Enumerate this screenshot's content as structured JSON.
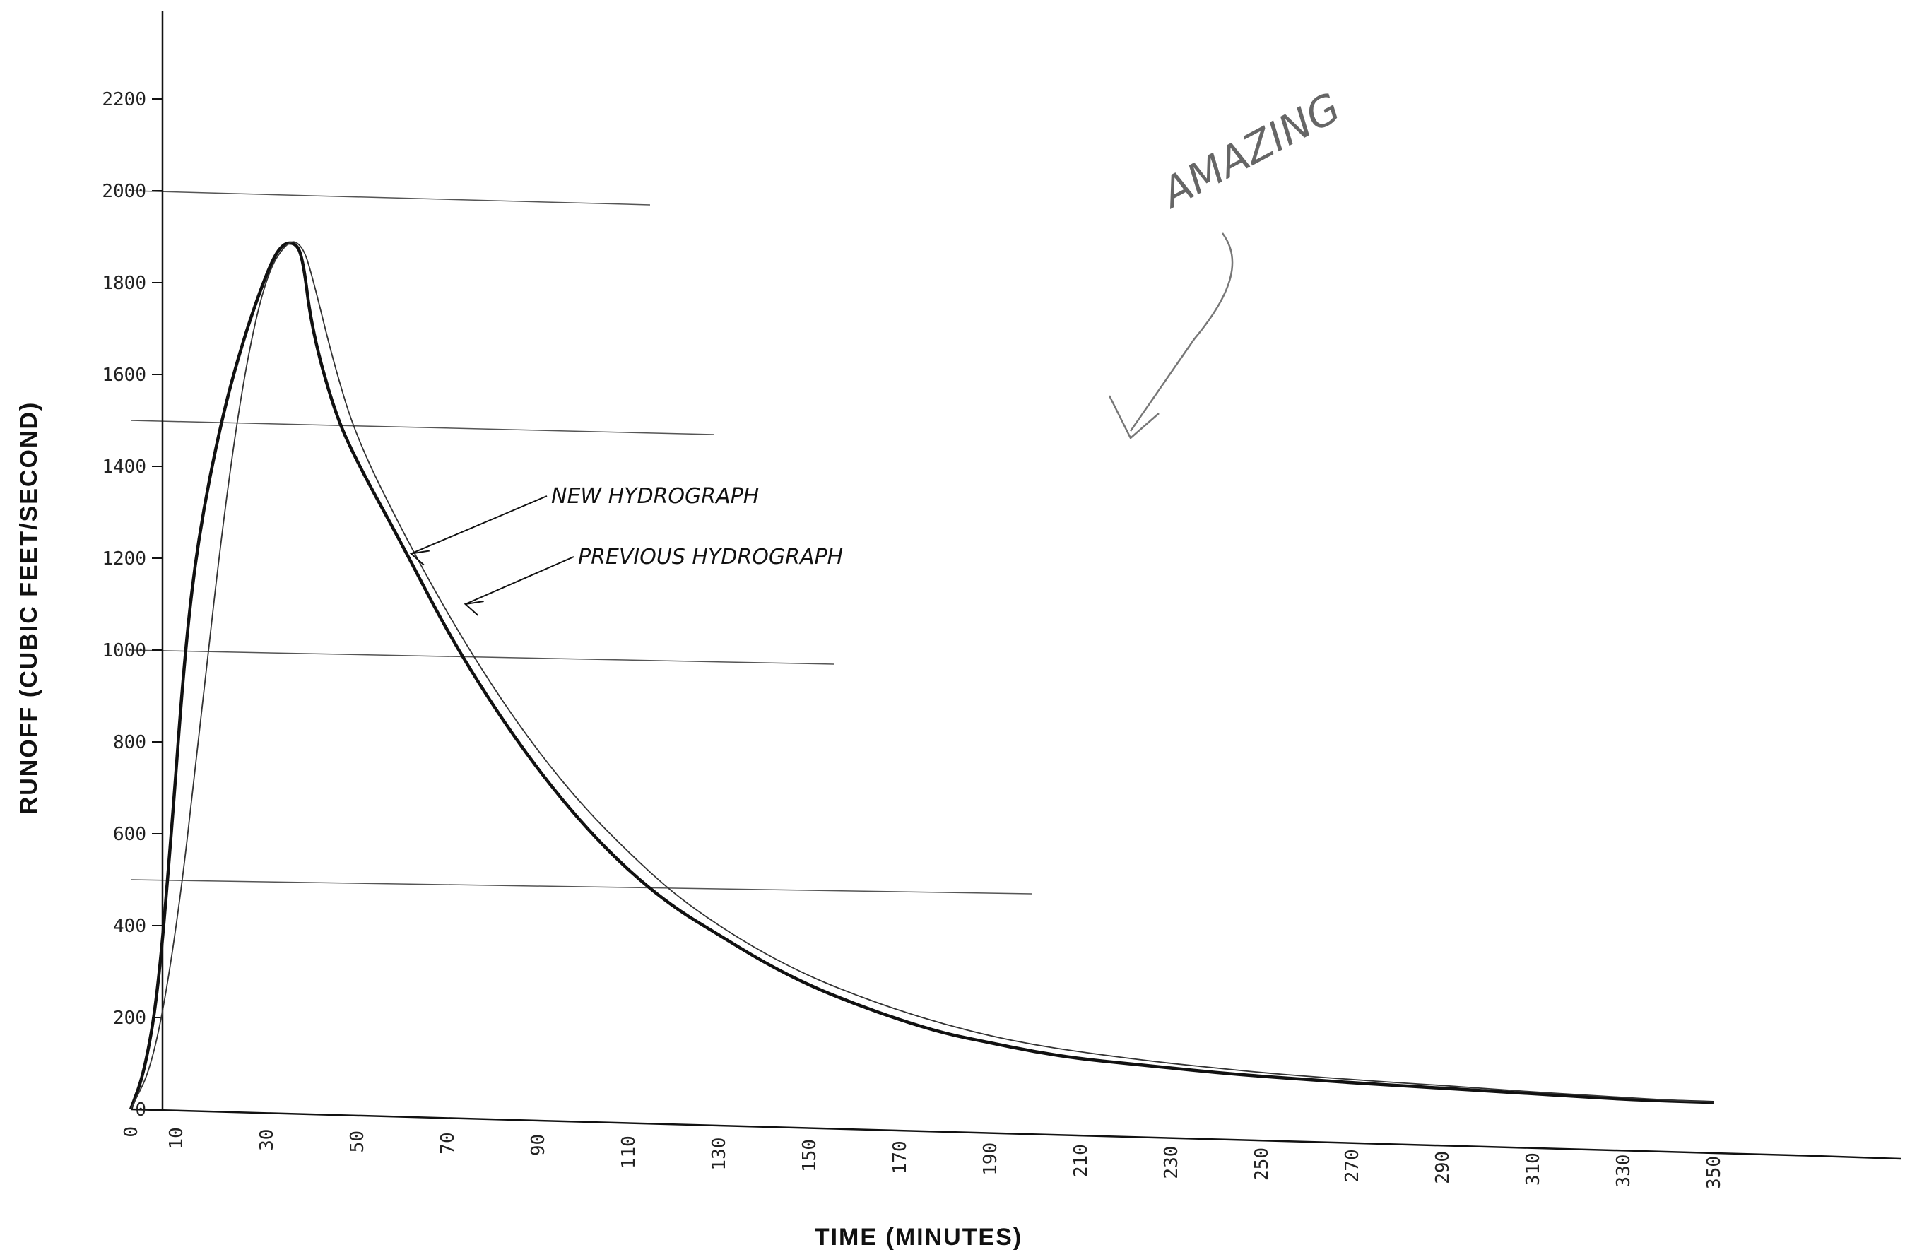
{
  "chart_data": {
    "type": "line",
    "xlabel": "TIME (MINUTES)",
    "ylabel": "RUNOFF (CUBIC FEET/SECOND)",
    "xlim": [
      0,
      350
    ],
    "ylim": [
      0,
      2200
    ],
    "x_ticks": [
      "0",
      "10",
      "30",
      "50",
      "70",
      "90",
      "110",
      "130",
      "150",
      "170",
      "190",
      "210",
      "230",
      "250",
      "270",
      "290",
      "310",
      "330",
      "350"
    ],
    "y_ticks": [
      "0",
      "200",
      "400",
      "600",
      "800",
      "1000",
      "1200",
      "1400",
      "1600",
      "1800",
      "2000",
      "2200"
    ],
    "series": [
      {
        "name": "NEW HYDROGRAPH",
        "style": "thick",
        "color": "#111111",
        "points": [
          [
            0,
            0
          ],
          [
            3,
            80
          ],
          [
            6,
            250
          ],
          [
            9,
            600
          ],
          [
            12,
            1000
          ],
          [
            15,
            1250
          ],
          [
            20,
            1500
          ],
          [
            25,
            1680
          ],
          [
            30,
            1820
          ],
          [
            33,
            1880
          ],
          [
            36,
            1890
          ],
          [
            38,
            1860
          ],
          [
            40,
            1700
          ],
          [
            45,
            1520
          ],
          [
            50,
            1410
          ],
          [
            60,
            1230
          ],
          [
            70,
            1040
          ],
          [
            80,
            880
          ],
          [
            90,
            740
          ],
          [
            100,
            620
          ],
          [
            110,
            520
          ],
          [
            120,
            440
          ],
          [
            130,
            380
          ],
          [
            140,
            320
          ],
          [
            150,
            270
          ],
          [
            160,
            230
          ],
          [
            170,
            195
          ],
          [
            180,
            165
          ],
          [
            190,
            145
          ],
          [
            200,
            125
          ],
          [
            210,
            110
          ],
          [
            220,
            100
          ],
          [
            230,
            90
          ],
          [
            240,
            80
          ],
          [
            250,
            72
          ],
          [
            260,
            65
          ],
          [
            270,
            58
          ],
          [
            280,
            52
          ],
          [
            290,
            46
          ],
          [
            300,
            40
          ],
          [
            310,
            34
          ],
          [
            320,
            28
          ],
          [
            330,
            22
          ],
          [
            340,
            18
          ],
          [
            350,
            15
          ]
        ]
      },
      {
        "name": "PREVIOUS HYDROGRAPH",
        "style": "thin",
        "color": "#333333",
        "points": [
          [
            0,
            0
          ],
          [
            5,
            100
          ],
          [
            10,
            380
          ],
          [
            15,
            800
          ],
          [
            20,
            1250
          ],
          [
            25,
            1600
          ],
          [
            30,
            1820
          ],
          [
            35,
            1895
          ],
          [
            38,
            1880
          ],
          [
            40,
            1820
          ],
          [
            45,
            1620
          ],
          [
            50,
            1460
          ],
          [
            60,
            1260
          ],
          [
            70,
            1080
          ],
          [
            80,
            920
          ],
          [
            90,
            780
          ],
          [
            100,
            660
          ],
          [
            110,
            560
          ],
          [
            120,
            470
          ],
          [
            130,
            400
          ],
          [
            140,
            340
          ],
          [
            150,
            290
          ],
          [
            160,
            250
          ],
          [
            170,
            215
          ],
          [
            180,
            185
          ],
          [
            190,
            160
          ],
          [
            200,
            140
          ],
          [
            210,
            125
          ],
          [
            220,
            112
          ],
          [
            230,
            100
          ],
          [
            240,
            90
          ],
          [
            250,
            80
          ],
          [
            260,
            72
          ],
          [
            270,
            65
          ],
          [
            280,
            58
          ],
          [
            290,
            52
          ],
          [
            300,
            45
          ],
          [
            310,
            38
          ],
          [
            320,
            32
          ],
          [
            330,
            26
          ],
          [
            340,
            20
          ],
          [
            350,
            16
          ]
        ]
      }
    ],
    "annotations": [
      {
        "text": "NEW HYDROGRAPH",
        "points_to": "NEW HYDROGRAPH"
      },
      {
        "text": "PREVIOUS HYDROGRAPH",
        "points_to": "PREVIOUS HYDROGRAPH"
      }
    ],
    "handwritten_note": "AMAZING",
    "grid": false
  }
}
